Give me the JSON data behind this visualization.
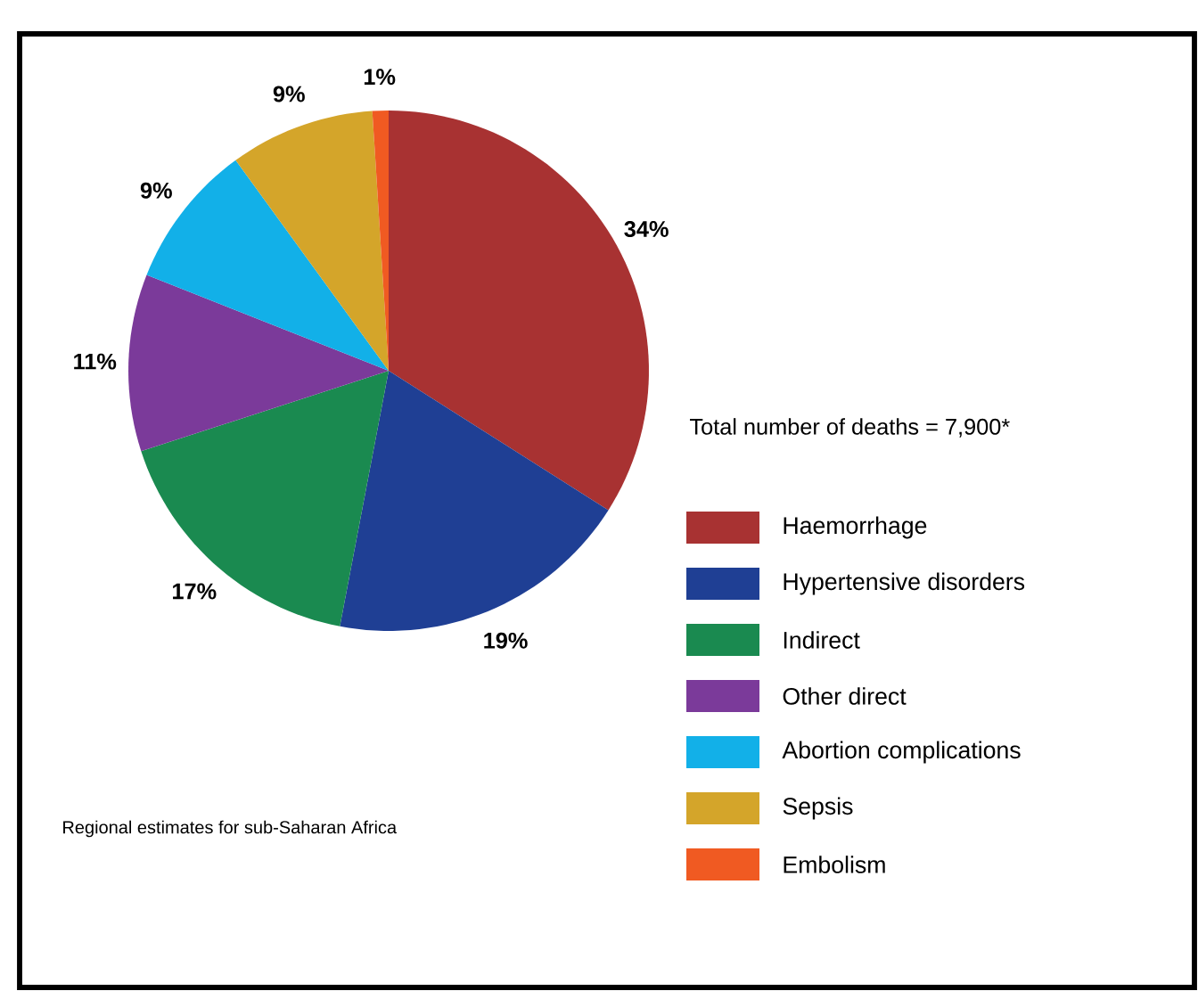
{
  "chart_data": {
    "type": "pie",
    "subtitle": "Total number of deaths = 7,900*",
    "categories": [
      "Haemorrhage",
      "Hypertensive disorders",
      "Indirect",
      "Other direct",
      "Abortion complications",
      "Sepsis",
      "Embolism"
    ],
    "values": [
      34,
      19,
      17,
      11,
      9,
      9,
      1
    ],
    "value_labels": [
      "34%",
      "19%",
      "17%",
      "11%",
      "9%",
      "9%",
      "1%"
    ],
    "colors": [
      "#a83232",
      "#1f3f94",
      "#1a8a50",
      "#7b3a9a",
      "#12b0e8",
      "#d4a52a",
      "#f05a22"
    ],
    "legend": "right",
    "annotations": [
      "Regional estimates for sub-Saharan Africa"
    ]
  }
}
